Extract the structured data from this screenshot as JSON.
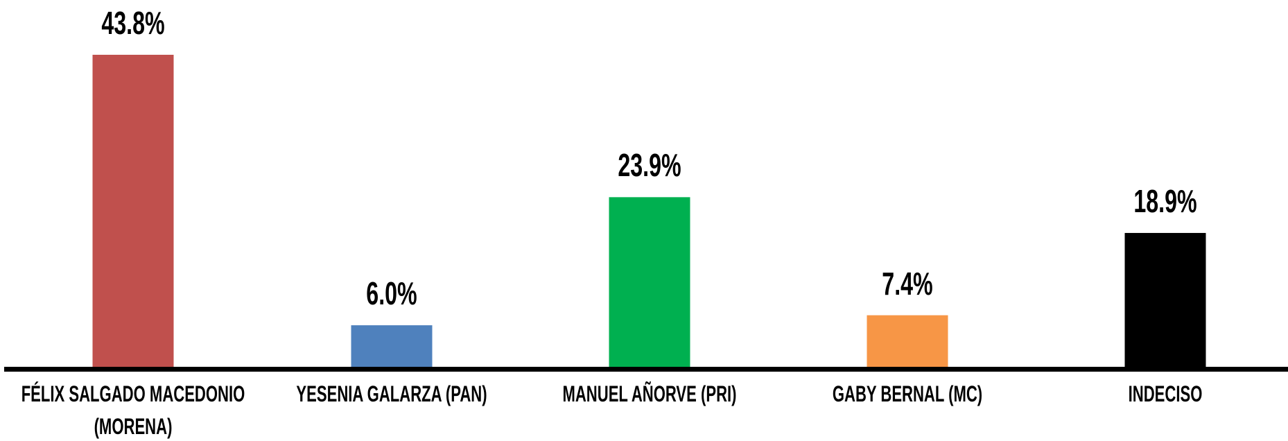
{
  "chart_data": {
    "type": "bar",
    "categories": [
      "FÉLIX SALGADO MACEDONIO (MORENA)",
      "YESENIA GALARZA (PAN)",
      "MANUEL AÑORVE (PRI)",
      "GABY BERNAL (MC)",
      "INDECISO"
    ],
    "values": [
      43.8,
      6.0,
      23.9,
      7.4,
      18.9
    ],
    "value_labels": [
      "43.8%",
      "6.0%",
      "23.9%",
      "7.4%",
      "18.9%"
    ],
    "colors": [
      "#c0504d",
      "#4f81bd",
      "#00b050",
      "#f79646",
      "#000000"
    ]
  }
}
